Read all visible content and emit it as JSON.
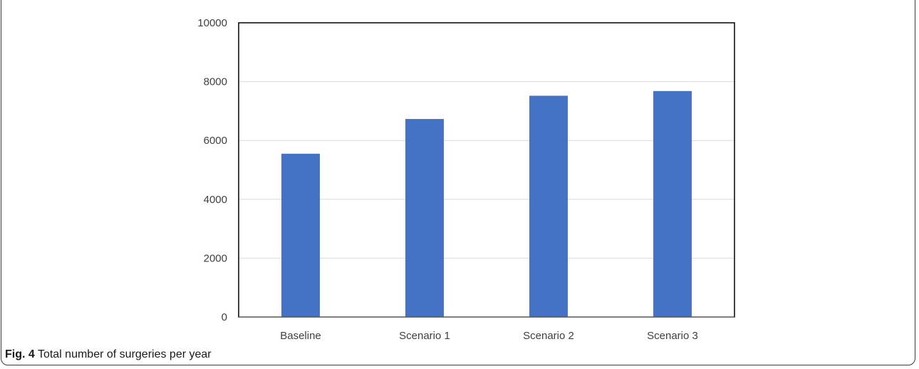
{
  "caption": {
    "label": "Fig. 4",
    "text": " Total number of surgeries per year"
  },
  "chart_data": {
    "type": "bar",
    "categories": [
      "Baseline",
      "Scenario 1",
      "Scenario 2",
      "Scenario 3"
    ],
    "values": [
      5550,
      6730,
      7520,
      7680
    ],
    "ylim": [
      0,
      10000
    ],
    "yticks": [
      0,
      2000,
      4000,
      6000,
      8000,
      10000
    ],
    "title": "",
    "xlabel": "",
    "ylabel": "",
    "grid": true,
    "legend": "none",
    "colors": {
      "bar": "#4472C4",
      "grid": "#d9d9d9",
      "frame": "#000000",
      "axis_text": "#404040"
    }
  }
}
